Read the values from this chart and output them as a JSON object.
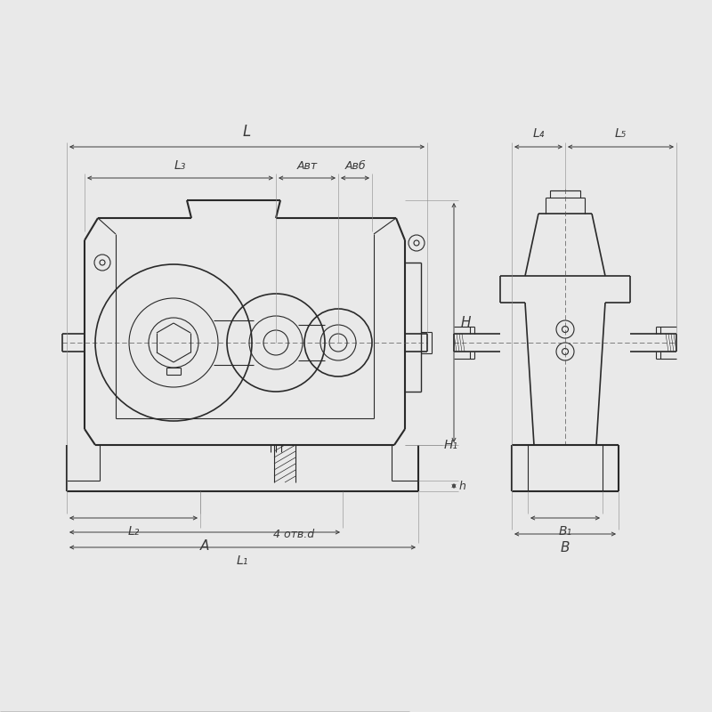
{
  "bg_color": "#e9e9e9",
  "line_color": "#2a2a2a",
  "dim_color": "#3a3a3a",
  "center_color": "#555555",
  "annotations": {
    "L_label": "L",
    "L3_label": "L₃",
    "Awt_label": "Aвт",
    "Awb_label": "Aвб",
    "L2_label": "L₂",
    "A_label": "A",
    "L1_label": "L₁",
    "H_label": "H",
    "H1_label": "H₁",
    "h_label": "h",
    "otv_label": "4 отв.d",
    "L4_label": "L₄",
    "L5_label": "L₅",
    "B1_label": "B₁",
    "B_label": "B"
  }
}
